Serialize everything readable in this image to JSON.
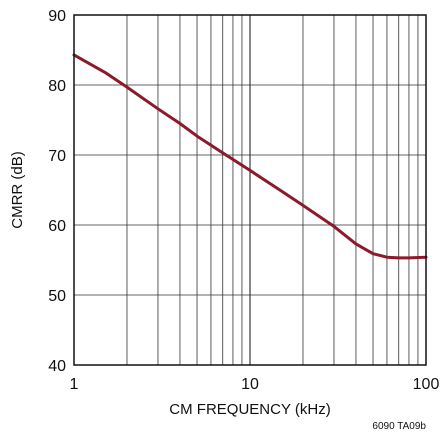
{
  "chart_data": {
    "type": "line",
    "x_scale": "log",
    "xlabel": "CM FREQUENCY (kHz)",
    "ylabel": "CMRR (dB)",
    "xlim": [
      1,
      100
    ],
    "ylim": [
      40,
      90
    ],
    "x_ticks": [
      1,
      10,
      100
    ],
    "x_tick_labels": [
      "1",
      "10",
      "100"
    ],
    "y_ticks": [
      40,
      50,
      60,
      70,
      80,
      90
    ],
    "y_tick_labels": [
      "40",
      "50",
      "60",
      "70",
      "80",
      "90"
    ],
    "grid": true,
    "line_color": "#8b1a2b",
    "series": [
      {
        "x": [
          1,
          1.5,
          2,
          3,
          4,
          5,
          7,
          10,
          15,
          20,
          30,
          40,
          50,
          60,
          70,
          80,
          100
        ],
        "y": [
          84.3,
          81.8,
          79.7,
          76.6,
          74.5,
          72.7,
          70.3,
          67.8,
          64.9,
          62.8,
          59.8,
          57.3,
          55.9,
          55.4,
          55.3,
          55.3,
          55.4
        ]
      }
    ]
  },
  "figure_code": "6090 TA09b"
}
